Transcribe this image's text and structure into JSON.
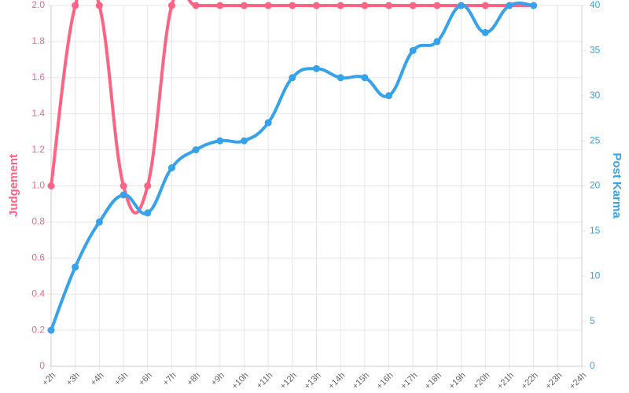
{
  "chart_data": {
    "type": "line",
    "categories": [
      "+2h",
      "+3h",
      "+4h",
      "+5h",
      "+6h",
      "+7h",
      "+8h",
      "+9h",
      "+10h",
      "+11h",
      "+12h",
      "+13h",
      "+14h",
      "+15h",
      "+16h",
      "+17h",
      "+18h",
      "+19h",
      "+20h",
      "+21h",
      "+22h",
      "+23h",
      "+24h"
    ],
    "series": [
      {
        "color": "#ff6384",
        "axis": "y",
        "values": [
          1,
          2,
          2,
          1,
          1,
          2,
          2,
          2,
          2,
          2,
          2,
          2,
          2,
          2,
          2,
          2,
          2,
          2,
          2,
          2,
          2,
          null,
          null
        ]
      },
      {
        "color": "#36a2eb",
        "axis": "y2",
        "values": [
          4,
          11,
          16,
          19,
          17,
          22,
          24,
          25,
          25,
          27,
          32,
          33,
          32,
          32,
          30,
          35,
          36,
          40,
          37,
          40,
          40,
          null,
          null
        ]
      }
    ],
    "ylabel": "Judgement",
    "y2label": "Post Karma",
    "ylim": [
      0,
      2
    ],
    "yticks": [
      0,
      0.2,
      0.4,
      0.6,
      0.8,
      {
        "value": 1,
        "label": "1.0"
      },
      1.2,
      1.4,
      1.6,
      1.8,
      {
        "value": 2,
        "label": "2.0"
      }
    ],
    "y2lim": [
      0,
      40
    ],
    "y2ticks": [
      0,
      5,
      10,
      15,
      20,
      25,
      30,
      35,
      40
    ],
    "grid": true
  }
}
